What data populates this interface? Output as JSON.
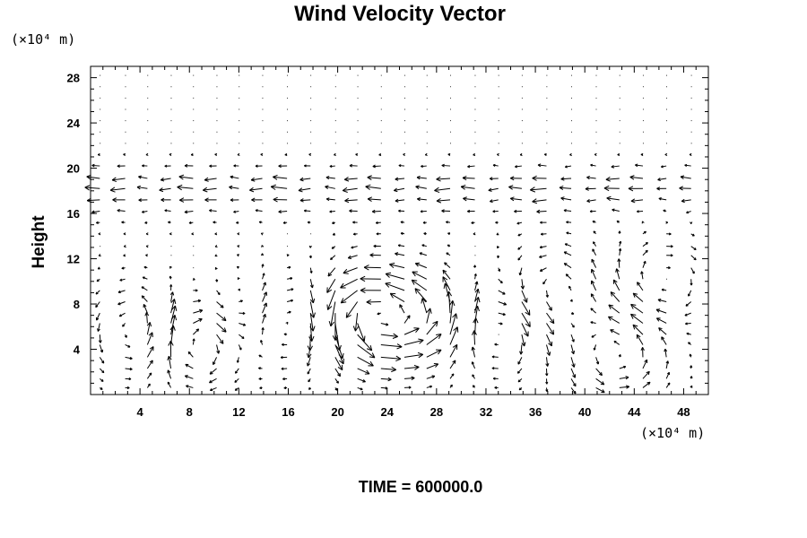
{
  "chart_data": {
    "type": "vector",
    "title": "Wind Velocity Vector",
    "xlabel": "",
    "ylabel": "Height",
    "x_unit": "(×10⁴ m)",
    "y_unit": "(×10⁴ m)",
    "xlim": [
      0,
      50
    ],
    "ylim": [
      0,
      29
    ],
    "xticks_labeled": [
      4,
      8,
      12,
      16,
      20,
      24,
      28,
      32,
      36,
      40,
      44,
      48
    ],
    "yticks_labeled": [
      4,
      8,
      12,
      16,
      20,
      24,
      28
    ],
    "x_minor_step": 1,
    "y_minor_step": 1,
    "grid": false,
    "grid_x": [
      0.75,
      2.8,
      4.6,
      6.5,
      8.3,
      10.2,
      12.0,
      13.9,
      15.9,
      17.8,
      19.8,
      21.6,
      23.5,
      25.4,
      27.2,
      29.1,
      31.1,
      33.0,
      34.9,
      36.9,
      38.9,
      40.9,
      42.8,
      44.7,
      46.6,
      48.6
    ],
    "grid_y": [
      0.6,
      1.4,
      2.3,
      3.3,
      4.4,
      5.3,
      6.3,
      7.2,
      8.2,
      9.2,
      10.2,
      11.2,
      12.3,
      13.1,
      14.2,
      15.2,
      16.2,
      17.2,
      18.2,
      19.1,
      20.2,
      21.2,
      22.2,
      23.2,
      24.2,
      25.2,
      26.2,
      27.2,
      28.2
    ],
    "vortices": [
      {
        "x": 4.6,
        "y": 5.5,
        "strength": 1.5,
        "sense": 1
      },
      {
        "x": 8.3,
        "y": 5.0,
        "strength": 1.9,
        "sense": -1
      },
      {
        "x": 12.0,
        "y": 7.0,
        "strength": 1.0,
        "sense": 1
      },
      {
        "x": 16.0,
        "y": 6.5,
        "strength": 1.3,
        "sense": -1
      },
      {
        "x": 22.5,
        "y": 7.0,
        "strength": 2.4,
        "sense": 1
      },
      {
        "x": 27.5,
        "y": 6.5,
        "strength": 1.6,
        "sense": 1
      },
      {
        "x": 32.5,
        "y": 6.0,
        "strength": 1.2,
        "sense": -1
      },
      {
        "x": 37.5,
        "y": 9.0,
        "strength": 1.1,
        "sense": 1
      },
      {
        "x": 42.5,
        "y": 3.5,
        "strength": 1.3,
        "sense": 1
      },
      {
        "x": 46.5,
        "y": 10.0,
        "strength": 0.9,
        "sense": -1
      }
    ],
    "upper_jet": {
      "y_center": 18.2,
      "speed": -1.6,
      "width": 2.5
    },
    "calm_above": 20.5,
    "arrow_scale": 1.0
  },
  "footer": {
    "time_label": "TIME = 600000.0"
  }
}
